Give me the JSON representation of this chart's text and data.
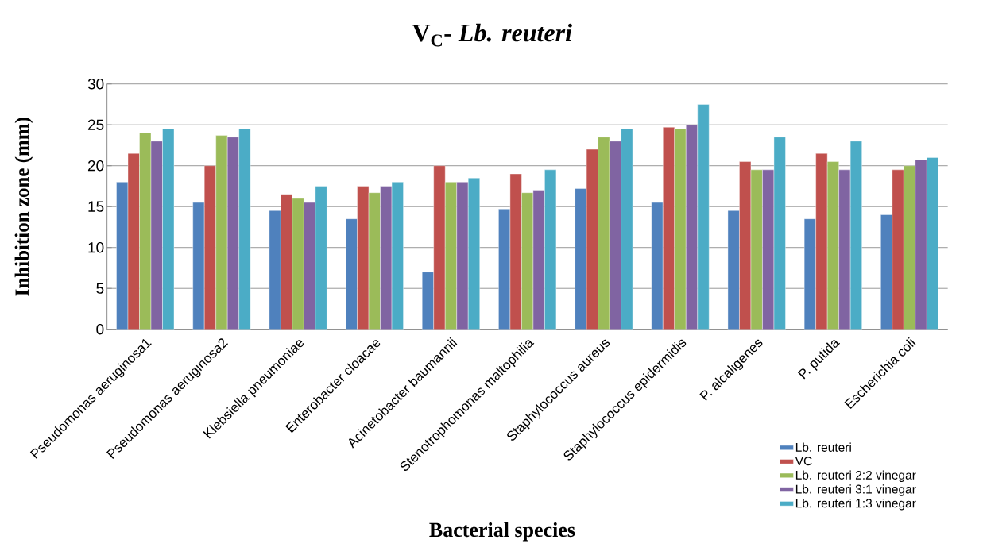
{
  "chart_data": {
    "type": "bar",
    "title": "V$_{C}$- *Lb. reuteri*",
    "xlabel": "Bacterial species",
    "ylabel": "Inhibition zone (mm)",
    "categories": [
      "Pseudomonas aeruginosa1",
      "Pseudomonas aeruginosa2",
      "Klebsiella pneumoniae",
      "Enterobacter cloacae",
      "Acinetobacter baumannii",
      "Stenotrophomonas maltophilia",
      "Staphylococcus aureus",
      "Staphylococcus epidermidis",
      "P. alcaligenes",
      "P. putida",
      "Escherichia coli"
    ],
    "series": [
      {
        "name": "Lb. reuteri",
        "color": "#4f81bd",
        "values": [
          18,
          15.5,
          14.5,
          13.5,
          7,
          14.7,
          17.2,
          15.5,
          14.5,
          13.5,
          14
        ]
      },
      {
        "name": "VC",
        "color": "#c0504d",
        "values": [
          21.5,
          20,
          16.5,
          17.5,
          20,
          19,
          22,
          24.7,
          20.5,
          21.5,
          19.5
        ]
      },
      {
        "name": "Lb. reuteri 2:2 vinegar",
        "color": "#9bbb59",
        "values": [
          24,
          23.7,
          16,
          16.7,
          18,
          16.7,
          23.5,
          24.5,
          19.5,
          20.5,
          20
        ]
      },
      {
        "name": "Lb. reuteri 3:1 vinegar",
        "color": "#8064a2",
        "values": [
          23,
          23.5,
          15.5,
          17.5,
          18,
          17,
          23,
          25,
          19.5,
          19.5,
          20.7
        ]
      },
      {
        "name": "Lb. reuteri 1:3 vinegar",
        "color": "#4bacc6",
        "values": [
          24.5,
          24.5,
          17.5,
          18,
          18.5,
          19.5,
          24.5,
          27.5,
          23.5,
          23,
          21
        ]
      }
    ],
    "ylim": [
      0,
      30
    ],
    "yticks": [
      0,
      5,
      10,
      15,
      20,
      25,
      30
    ],
    "grid": "y",
    "legend": "bottom right"
  }
}
